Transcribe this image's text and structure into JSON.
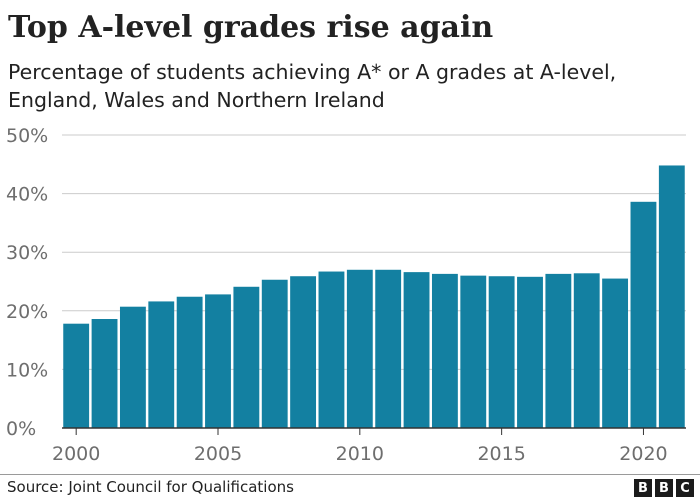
{
  "chart_data": {
    "type": "bar",
    "title": "Top A-level grades rise again",
    "subtitle": "Percentage of students achieving A* or A grades at A-level, England, Wales and Northern Ireland",
    "categories": [
      2000,
      2001,
      2002,
      2003,
      2004,
      2005,
      2006,
      2007,
      2008,
      2009,
      2010,
      2011,
      2012,
      2013,
      2014,
      2015,
      2016,
      2017,
      2018,
      2019,
      2020,
      2021
    ],
    "values": [
      17.8,
      18.6,
      20.7,
      21.6,
      22.4,
      22.8,
      24.1,
      25.3,
      25.9,
      26.7,
      27.0,
      27.0,
      26.6,
      26.3,
      26.0,
      25.9,
      25.8,
      26.3,
      26.4,
      25.5,
      38.6,
      44.8
    ],
    "x_tick_labels": [
      "2000",
      "2005",
      "2010",
      "2015",
      "2020"
    ],
    "y_ticks": [
      0,
      10,
      20,
      30,
      40,
      50
    ],
    "y_tick_labels": [
      "0%",
      "10%",
      "20%",
      "30%",
      "40%",
      "50%"
    ],
    "ylim": [
      0,
      50
    ],
    "xlabel": "",
    "ylabel": "",
    "grid": true,
    "bar_color": "#1380a1",
    "gridline_color": "#cbcbcb",
    "source": "Source: Joint Council for Qualifications",
    "logo_letters": [
      "B",
      "B",
      "C"
    ]
  }
}
